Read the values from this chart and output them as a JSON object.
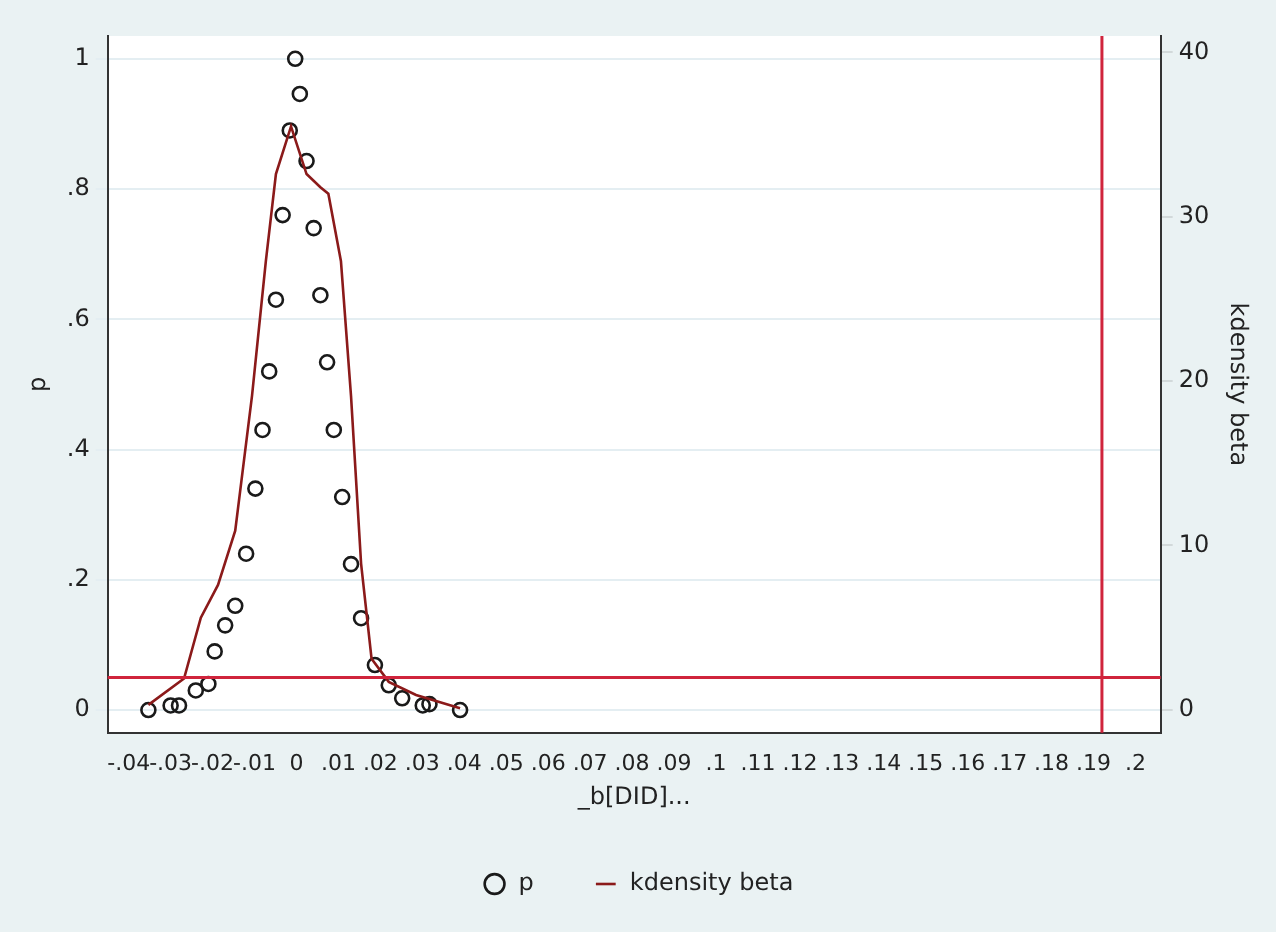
{
  "chart_data": {
    "type": "scatter",
    "xlabel": "_b[DID]...",
    "ylabel": "p",
    "y2label": "kdensity beta",
    "xlim": [
      -0.045,
      0.206
    ],
    "ylim": [
      -0.035,
      1.035
    ],
    "y2lim": [
      -1.4,
      41
    ],
    "xticks": [
      {
        "value": -0.04,
        "label": "-.04"
      },
      {
        "value": -0.03,
        "label": "-.03"
      },
      {
        "value": -0.02,
        "label": "-.02"
      },
      {
        "value": -0.01,
        "label": "-.01"
      },
      0,
      {
        "value": 0.01,
        "label": ".01"
      },
      {
        "value": 0.02,
        "label": ".02"
      },
      {
        "value": 0.03,
        "label": ".03"
      },
      {
        "value": 0.04,
        "label": ".04"
      },
      {
        "value": 0.05,
        "label": ".05"
      },
      {
        "value": 0.06,
        "label": ".06"
      },
      {
        "value": 0.07,
        "label": ".07"
      },
      {
        "value": 0.08,
        "label": ".08"
      },
      {
        "value": 0.09,
        "label": ".09"
      },
      {
        "value": 0.1,
        "label": ".1"
      },
      {
        "value": 0.11,
        "label": ".11"
      },
      {
        "value": 0.12,
        "label": ".12"
      },
      {
        "value": 0.13,
        "label": ".13"
      },
      {
        "value": 0.14,
        "label": ".14"
      },
      {
        "value": 0.15,
        "label": ".15"
      },
      {
        "value": 0.16,
        "label": ".16"
      },
      {
        "value": 0.17,
        "label": ".17"
      },
      {
        "value": 0.18,
        "label": ".18"
      },
      {
        "value": 0.19,
        "label": ".19"
      },
      {
        "value": 0.2,
        "label": ".2"
      }
    ],
    "yticks": [
      0,
      {
        "value": 0.2,
        "label": ".2"
      },
      {
        "value": 0.4,
        "label": ".4"
      },
      {
        "value": 0.6,
        "label": ".6"
      },
      {
        "value": 0.8,
        "label": ".8"
      },
      1
    ],
    "y2ticks": [
      0,
      10,
      20,
      30,
      40
    ],
    "grid": "y",
    "legend": "bottom",
    "series": [
      {
        "name": "p",
        "marker": "circle",
        "color": "#1a1a1a",
        "x": [
          -0.0353,
          -0.03,
          -0.028,
          -0.024,
          -0.021,
          -0.0195,
          -0.017,
          -0.0146,
          -0.012,
          -0.0098,
          -0.0081,
          -0.0065,
          -0.0049,
          -0.0033,
          -0.0016,
          -0.0003,
          0.0008,
          0.0024,
          0.0041,
          0.0057,
          0.0073,
          0.0089,
          0.0109,
          0.013,
          0.0154,
          0.0187,
          0.022,
          0.0252,
          0.0301,
          0.0317,
          0.039
        ],
        "values": [
          0,
          0.007,
          0.007,
          0.03,
          0.04,
          0.09,
          0.13,
          0.16,
          0.24,
          0.34,
          0.43,
          0.52,
          0.63,
          0.76,
          0.89,
          1,
          0.946,
          0.843,
          0.74,
          0.637,
          0.534,
          0.43,
          0.327,
          0.224,
          0.141,
          0.069,
          0.038,
          0.018,
          0.007,
          0.009,
          0
        ]
      },
      {
        "name": "kdensity beta",
        "type": "line",
        "axis": "y2",
        "marker": "none",
        "color": "#8b1a1a",
        "x": [
          -0.0353,
          -0.0268,
          -0.0228,
          -0.0187,
          -0.0146,
          -0.0106,
          -0.0073,
          -0.0049,
          -0.0013,
          0.0024,
          0.0057,
          0.0076,
          0.0106,
          0.013,
          0.0154,
          0.0179,
          0.022,
          0.0285,
          0.039
        ],
        "values": [
          0.3,
          1.9,
          5.6,
          7.6,
          10.9,
          19.1,
          27.3,
          32.6,
          35.5,
          32.6,
          31.8,
          31.4,
          27.3,
          19.1,
          8.9,
          3.1,
          1.7,
          0.9,
          0.1
        ]
      }
    ],
    "ref_lines": [
      {
        "axis": "y",
        "value": 0.05,
        "color": "#d0243c"
      },
      {
        "axis": "x",
        "value": 0.192,
        "color": "#d0243c"
      }
    ]
  }
}
